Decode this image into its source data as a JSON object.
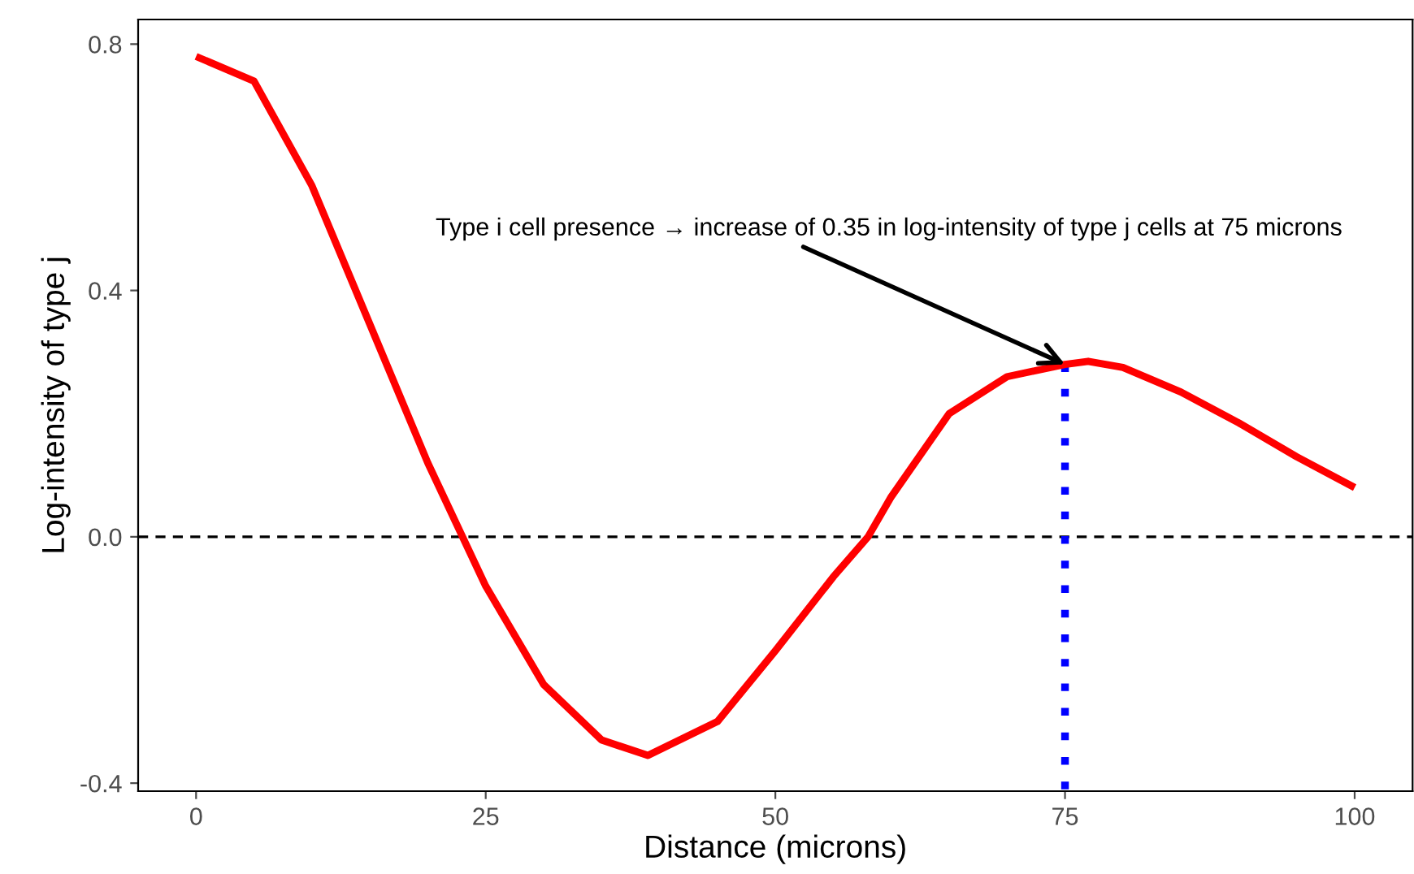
{
  "chart_data": {
    "type": "line",
    "xlabel": "Distance (microns)",
    "ylabel": "Log-intensity of type j",
    "series": [
      {
        "color": "#ff0000",
        "line_style": "solid",
        "x": [
          0,
          5,
          10,
          15,
          20,
          25,
          30,
          35,
          39,
          45,
          50,
          55,
          58,
          60,
          65,
          70,
          75,
          77,
          80,
          85,
          90,
          95,
          100
        ],
        "values": [
          0.78,
          0.74,
          0.57,
          0.345,
          0.12,
          -0.08,
          -0.24,
          -0.33,
          -0.355,
          -0.3,
          -0.185,
          -0.065,
          0,
          0.065,
          0.2,
          0.26,
          0.28,
          0.285,
          0.275,
          0.235,
          0.185,
          0.13,
          0.08
        ]
      },
      {
        "color": "#0000ff",
        "line_style": "dotted",
        "x": [
          75,
          75
        ],
        "values": [
          -0.41,
          0.28
        ]
      }
    ],
    "xlim": [
      -5,
      105
    ],
    "ylim": [
      -0.413,
      0.84
    ],
    "xticks": [
      0,
      25,
      50,
      75,
      100
    ],
    "yticks": [
      {
        "value": 0.8,
        "label": "0.8"
      },
      {
        "value": 0.4,
        "label": "0.4"
      },
      {
        "value": 0,
        "label": "0.0"
      },
      {
        "value": -0.4,
        "label": "-0.4"
      }
    ],
    "ref_lines": [
      {
        "axis": "y",
        "value": 0,
        "color": "#000000",
        "line_style": "dashed"
      }
    ],
    "annotations": [
      {
        "text": "Type i cell presence → increase of 0.35 in log-intensity of type j cells at 75 microns",
        "x": 75,
        "y": 0.28
      }
    ],
    "grid": false,
    "legend": false
  }
}
